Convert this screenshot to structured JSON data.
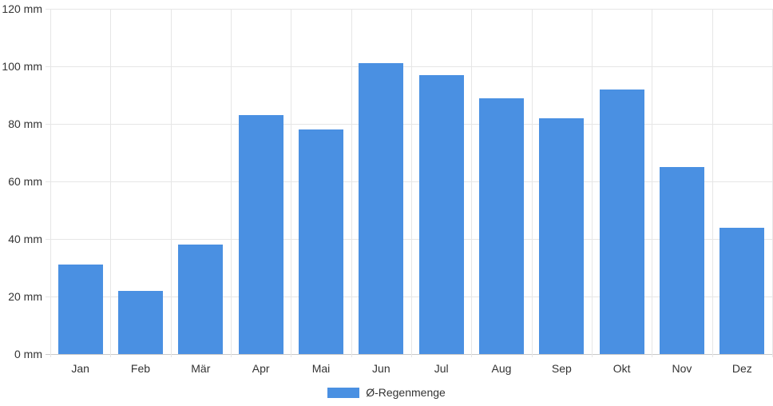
{
  "chart_data": {
    "type": "bar",
    "categories": [
      "Jan",
      "Feb",
      "Mär",
      "Apr",
      "Mai",
      "Jun",
      "Jul",
      "Aug",
      "Sep",
      "Okt",
      "Nov",
      "Dez"
    ],
    "values": [
      31,
      22,
      38,
      83,
      78,
      101,
      97,
      89,
      82,
      92,
      65,
      44
    ],
    "series": [
      {
        "name": "Ø-Regenmenge",
        "values": [
          31,
          22,
          38,
          83,
          78,
          101,
          97,
          89,
          82,
          92,
          65,
          44
        ]
      }
    ],
    "title": "",
    "xlabel": "",
    "ylabel": "",
    "unit": "mm",
    "ylim": [
      0,
      120
    ],
    "ytick_step": 20,
    "ytick_labels": [
      "0 mm",
      "20 mm",
      "40 mm",
      "60 mm",
      "80 mm",
      "100 mm",
      "120 mm"
    ],
    "grid": true,
    "legend_position": "bottom"
  },
  "legend": {
    "label": "Ø-Regenmenge"
  },
  "colors": {
    "bar": "#4a90e2",
    "grid": "#e6e6e6",
    "zero_line": "#c9c9c9",
    "text": "#333333",
    "background": "#ffffff"
  }
}
